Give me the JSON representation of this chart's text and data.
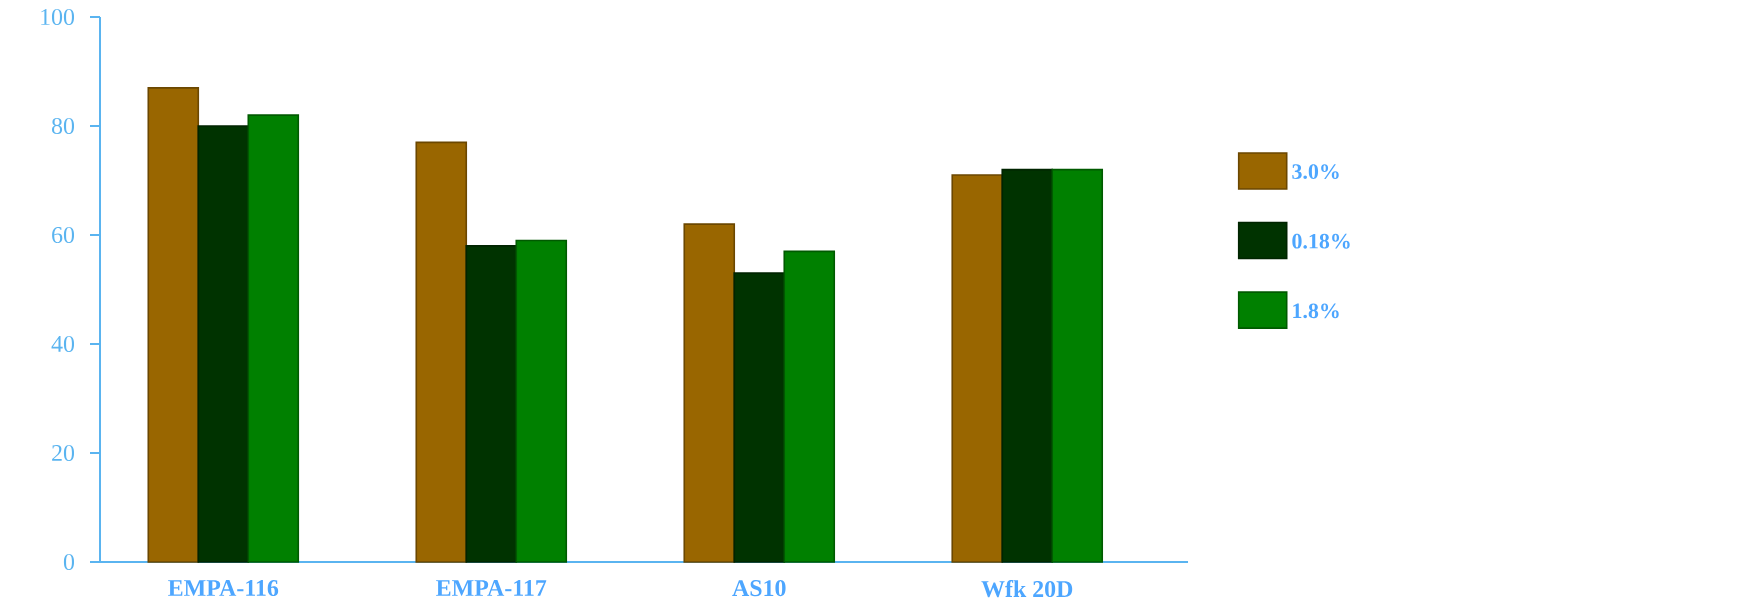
{
  "chart_data": {
    "type": "bar",
    "categories": [
      "EMPA-116",
      "EMPA-117",
      "AS10",
      "Wfk 20D"
    ],
    "series": [
      {
        "name": "3.0%",
        "color": "#996600",
        "values": [
          87,
          77,
          62,
          71
        ]
      },
      {
        "name": "0.18%",
        "color": "#003300",
        "values": [
          80,
          58,
          53,
          72
        ]
      },
      {
        "name": "1.8%",
        "color": "#008000",
        "values": [
          82,
          59,
          57,
          72
        ]
      }
    ],
    "ylim": [
      0,
      100
    ],
    "yticks": [
      0,
      20,
      40,
      60,
      80,
      100
    ],
    "legend": "right"
  }
}
